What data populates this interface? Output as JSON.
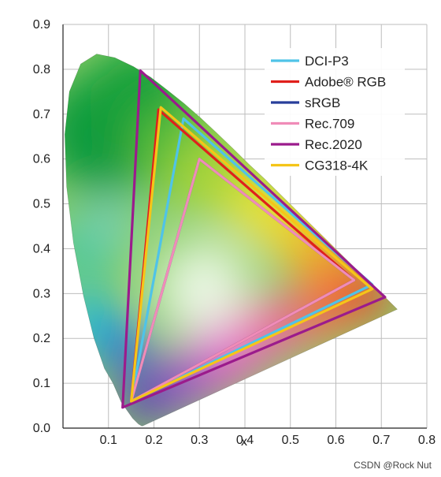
{
  "chart_data": {
    "type": "scatter",
    "xlabel": "x",
    "ylabel": "",
    "xlim": [
      0,
      0.8
    ],
    "ylim": [
      0,
      0.9
    ],
    "x_ticks": [
      "0.1",
      "0.2",
      "0.3",
      "0.4",
      "0.5",
      "0.6",
      "0.7",
      "0.8"
    ],
    "y_ticks": [
      "0.0",
      "0.1",
      "0.2",
      "0.3",
      "0.4",
      "0.5",
      "0.6",
      "0.7",
      "0.8",
      "0.9"
    ],
    "grid": true,
    "legend_position": "top-right",
    "spectral_locus": [
      [
        0.175,
        0.005
      ],
      [
        0.173,
        0.005
      ],
      [
        0.166,
        0.009
      ],
      [
        0.153,
        0.022
      ],
      [
        0.128,
        0.058
      ],
      [
        0.11,
        0.1
      ],
      [
        0.091,
        0.133
      ],
      [
        0.068,
        0.201
      ],
      [
        0.045,
        0.295
      ],
      [
        0.023,
        0.413
      ],
      [
        0.008,
        0.538
      ],
      [
        0.004,
        0.655
      ],
      [
        0.014,
        0.75
      ],
      [
        0.039,
        0.812
      ],
      [
        0.074,
        0.834
      ],
      [
        0.114,
        0.826
      ],
      [
        0.155,
        0.806
      ],
      [
        0.193,
        0.782
      ],
      [
        0.229,
        0.754
      ],
      [
        0.266,
        0.724
      ],
      [
        0.302,
        0.692
      ],
      [
        0.337,
        0.659
      ],
      [
        0.373,
        0.624
      ],
      [
        0.408,
        0.589
      ],
      [
        0.444,
        0.555
      ],
      [
        0.479,
        0.52
      ],
      [
        0.512,
        0.487
      ],
      [
        0.545,
        0.454
      ],
      [
        0.575,
        0.424
      ],
      [
        0.603,
        0.396
      ],
      [
        0.627,
        0.372
      ],
      [
        0.648,
        0.351
      ],
      [
        0.666,
        0.334
      ],
      [
        0.735,
        0.265
      ]
    ],
    "series": [
      {
        "name": "DCI-P3",
        "color": "#4fc3e8",
        "points": [
          [
            0.68,
            0.32
          ],
          [
            0.265,
            0.69
          ],
          [
            0.15,
            0.06
          ]
        ]
      },
      {
        "name": "Adobe® RGB",
        "color": "#e0201c",
        "points": [
          [
            0.64,
            0.33
          ],
          [
            0.21,
            0.71
          ],
          [
            0.15,
            0.06
          ]
        ]
      },
      {
        "name": "sRGB",
        "color": "#283e9a",
        "points": [
          [
            0.64,
            0.33
          ],
          [
            0.3,
            0.6
          ],
          [
            0.15,
            0.06
          ]
        ]
      },
      {
        "name": "Rec.709",
        "color": "#f08cb8",
        "points": [
          [
            0.64,
            0.33
          ],
          [
            0.3,
            0.6
          ],
          [
            0.15,
            0.06
          ]
        ]
      },
      {
        "name": "Rec.2020",
        "color": "#9b1b8c",
        "points": [
          [
            0.708,
            0.292
          ],
          [
            0.17,
            0.797
          ],
          [
            0.131,
            0.046
          ]
        ]
      },
      {
        "name": "CG318-4K",
        "color": "#f5c518",
        "points": [
          [
            0.68,
            0.31
          ],
          [
            0.215,
            0.715
          ],
          [
            0.15,
            0.06
          ]
        ]
      }
    ]
  },
  "watermark": "CSDN @Rock Nut"
}
